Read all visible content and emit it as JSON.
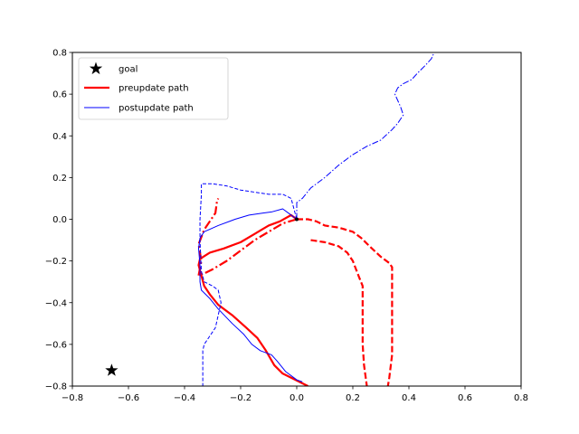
{
  "chart_data": {
    "type": "line",
    "title": "",
    "xlabel": "",
    "ylabel": "",
    "xlim": [
      -0.8,
      0.8
    ],
    "ylim": [
      -0.8,
      0.8
    ],
    "xticks": [
      -0.8,
      -0.6,
      -0.4,
      -0.2,
      0.0,
      0.2,
      0.4,
      0.6,
      0.8
    ],
    "yticks": [
      -0.8,
      -0.6,
      -0.4,
      -0.2,
      0.0,
      0.2,
      0.4,
      0.6,
      0.8
    ],
    "xtick_labels": [
      "−0.8",
      "−0.6",
      "−0.4",
      "−0.2",
      "0.0",
      "0.2",
      "0.4",
      "0.6",
      "0.8"
    ],
    "ytick_labels": [
      "−0.8",
      "−0.6",
      "−0.4",
      "−0.2",
      "0.0",
      "0.2",
      "0.4",
      "0.6",
      "0.8"
    ],
    "grid": false,
    "legend_position": "top-left",
    "legend": [
      {
        "label": "goal",
        "marker": "star",
        "color": "#000000"
      },
      {
        "label": "preupdate path",
        "style": "solid",
        "width": "thick",
        "color": "#ff0000"
      },
      {
        "label": "postupdate path",
        "style": "solid",
        "width": "thin",
        "color": "#0000ff"
      }
    ],
    "goal": {
      "x": -0.66,
      "y": -0.725
    },
    "start": {
      "x": 0.0,
      "y": 0.0
    },
    "series": [
      {
        "group": "preupdate",
        "color": "#ff0000",
        "style": "solid",
        "points": [
          [
            0.0,
            0.0
          ],
          [
            -0.02,
            0.02
          ],
          [
            -0.06,
            -0.01
          ],
          [
            -0.1,
            -0.03
          ],
          [
            -0.15,
            -0.07
          ],
          [
            -0.2,
            -0.11
          ],
          [
            -0.26,
            -0.14
          ],
          [
            -0.31,
            -0.16
          ],
          [
            -0.345,
            -0.19
          ],
          [
            -0.35,
            -0.22
          ],
          [
            -0.34,
            -0.27
          ],
          [
            -0.33,
            -0.32
          ],
          [
            -0.31,
            -0.36
          ],
          [
            -0.28,
            -0.41
          ],
          [
            -0.23,
            -0.46
          ],
          [
            -0.18,
            -0.52
          ],
          [
            -0.14,
            -0.57
          ],
          [
            -0.11,
            -0.63
          ],
          [
            -0.08,
            -0.7
          ],
          [
            -0.05,
            -0.74
          ],
          [
            -0.02,
            -0.76
          ],
          [
            0.01,
            -0.78
          ],
          [
            0.04,
            -0.8
          ]
        ]
      },
      {
        "group": "preupdate",
        "color": "#ff0000",
        "style": "dashed",
        "points": [
          [
            0.0,
            0.0
          ],
          [
            0.04,
            0.0
          ],
          [
            0.07,
            -0.01
          ],
          [
            0.1,
            -0.03
          ],
          [
            0.15,
            -0.04
          ],
          [
            0.2,
            -0.06
          ],
          [
            0.23,
            -0.09
          ],
          [
            0.26,
            -0.13
          ],
          [
            0.3,
            -0.18
          ],
          [
            0.33,
            -0.21
          ],
          [
            0.34,
            -0.23
          ],
          [
            0.34,
            -0.35
          ],
          [
            0.34,
            -0.5
          ],
          [
            0.34,
            -0.65
          ],
          [
            0.33,
            -0.76
          ],
          [
            0.325,
            -0.8
          ]
        ]
      },
      {
        "group": "preupdate",
        "color": "#ff0000",
        "style": "dashed",
        "points": [
          [
            0.05,
            -0.1
          ],
          [
            0.1,
            -0.11
          ],
          [
            0.15,
            -0.13
          ],
          [
            0.18,
            -0.16
          ],
          [
            0.2,
            -0.2
          ],
          [
            0.22,
            -0.27
          ],
          [
            0.235,
            -0.32
          ],
          [
            0.235,
            -0.45
          ],
          [
            0.235,
            -0.6
          ],
          [
            0.24,
            -0.7
          ],
          [
            0.25,
            -0.8
          ]
        ]
      },
      {
        "group": "preupdate",
        "color": "#ff0000",
        "style": "dashdot",
        "points": [
          [
            0.0,
            0.0
          ],
          [
            -0.05,
            -0.02
          ],
          [
            -0.1,
            -0.06
          ],
          [
            -0.15,
            -0.1
          ],
          [
            -0.2,
            -0.15
          ],
          [
            -0.25,
            -0.2
          ],
          [
            -0.3,
            -0.24
          ],
          [
            -0.33,
            -0.26
          ],
          [
            -0.35,
            -0.27
          ],
          [
            -0.34,
            -0.2
          ],
          [
            -0.35,
            -0.12
          ],
          [
            -0.33,
            -0.05
          ],
          [
            -0.31,
            -0.01
          ],
          [
            -0.29,
            0.03
          ],
          [
            -0.285,
            0.08
          ],
          [
            -0.28,
            0.1
          ]
        ]
      },
      {
        "group": "postupdate",
        "color": "#0000ff",
        "style": "solid",
        "points": [
          [
            0.0,
            0.0
          ],
          [
            -0.03,
            0.03
          ],
          [
            -0.05,
            0.05
          ],
          [
            -0.09,
            0.035
          ],
          [
            -0.12,
            0.03
          ],
          [
            -0.17,
            0.02
          ],
          [
            -0.22,
            0.0
          ],
          [
            -0.28,
            -0.03
          ],
          [
            -0.33,
            -0.06
          ],
          [
            -0.345,
            -0.09
          ],
          [
            -0.35,
            -0.14
          ],
          [
            -0.345,
            -0.22
          ],
          [
            -0.345,
            -0.3
          ],
          [
            -0.34,
            -0.34
          ],
          [
            -0.31,
            -0.38
          ],
          [
            -0.28,
            -0.43
          ],
          [
            -0.23,
            -0.5
          ],
          [
            -0.19,
            -0.55
          ],
          [
            -0.16,
            -0.6
          ],
          [
            -0.13,
            -0.63
          ],
          [
            -0.09,
            -0.65
          ],
          [
            -0.07,
            -0.68
          ],
          [
            -0.04,
            -0.73
          ],
          [
            0.0,
            -0.77
          ],
          [
            0.02,
            -0.78
          ]
        ]
      },
      {
        "group": "postupdate",
        "color": "#0000ff",
        "style": "dashed",
        "points": [
          [
            0.0,
            0.0
          ],
          [
            -0.01,
            0.05
          ],
          [
            -0.02,
            0.1
          ],
          [
            -0.05,
            0.12
          ],
          [
            -0.1,
            0.12
          ],
          [
            -0.15,
            0.13
          ],
          [
            -0.2,
            0.14
          ],
          [
            -0.25,
            0.16
          ],
          [
            -0.3,
            0.17
          ],
          [
            -0.34,
            0.17
          ],
          [
            -0.34,
            0.12
          ],
          [
            -0.345,
            0.0
          ],
          [
            -0.345,
            -0.1
          ],
          [
            -0.34,
            -0.25
          ],
          [
            -0.33,
            -0.3
          ],
          [
            -0.3,
            -0.32
          ],
          [
            -0.28,
            -0.34
          ],
          [
            -0.27,
            -0.4
          ],
          [
            -0.28,
            -0.46
          ],
          [
            -0.29,
            -0.52
          ],
          [
            -0.31,
            -0.56
          ],
          [
            -0.33,
            -0.6
          ],
          [
            -0.335,
            -0.63
          ],
          [
            -0.335,
            -0.7
          ],
          [
            -0.335,
            -0.8
          ]
        ]
      },
      {
        "group": "postupdate",
        "color": "#0000ff",
        "style": "dashdot",
        "points": [
          [
            0.0,
            0.0
          ],
          [
            0.0,
            0.08
          ],
          [
            0.02,
            0.1
          ],
          [
            0.05,
            0.15
          ],
          [
            0.1,
            0.2
          ],
          [
            0.15,
            0.26
          ],
          [
            0.2,
            0.31
          ],
          [
            0.25,
            0.35
          ],
          [
            0.3,
            0.38
          ],
          [
            0.34,
            0.43
          ],
          [
            0.36,
            0.46
          ],
          [
            0.38,
            0.5
          ],
          [
            0.37,
            0.54
          ],
          [
            0.35,
            0.6
          ],
          [
            0.36,
            0.63
          ],
          [
            0.38,
            0.65
          ],
          [
            0.41,
            0.67
          ],
          [
            0.43,
            0.7
          ],
          [
            0.46,
            0.74
          ],
          [
            0.48,
            0.77
          ],
          [
            0.49,
            0.8
          ]
        ]
      }
    ]
  }
}
